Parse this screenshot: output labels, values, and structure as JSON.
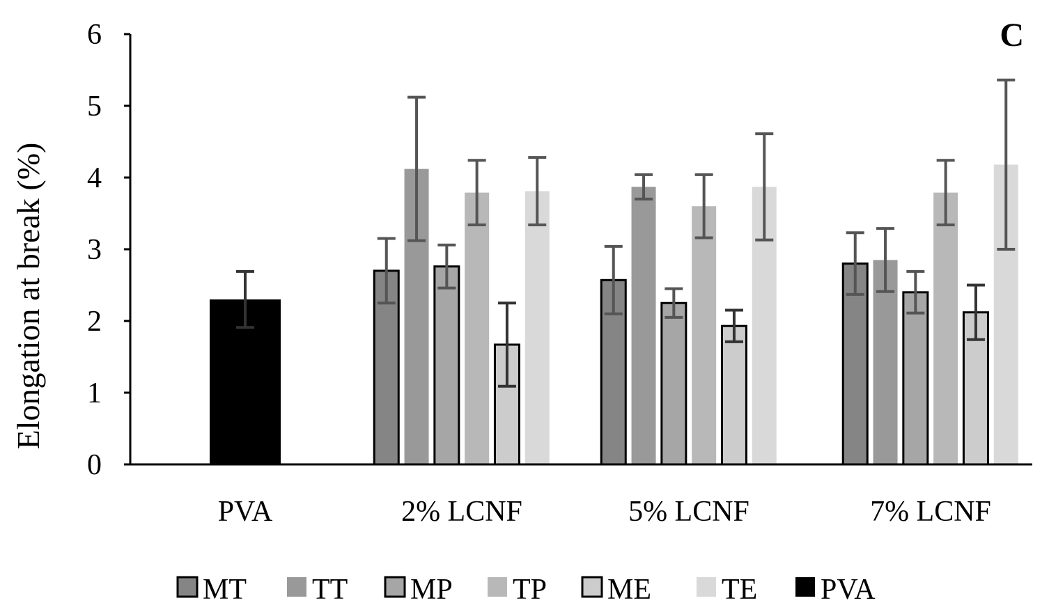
{
  "chart_data": {
    "type": "bar",
    "panel_label": "C",
    "ylabel": "Elongation at break (%)",
    "xlabel": "",
    "ylim": [
      0,
      6
    ],
    "yticks": [
      "0",
      "1",
      "2",
      "3",
      "4",
      "5",
      "6"
    ],
    "categories": [
      "PVA",
      "2% LCNF",
      "5% LCNF",
      "7% LCNF"
    ],
    "series": [
      {
        "name": "MT",
        "color": "#858585",
        "outlined": true,
        "values": [
          null,
          2.7,
          2.57,
          2.8
        ],
        "errors": [
          null,
          0.45,
          0.47,
          0.43
        ]
      },
      {
        "name": "TT",
        "color": "#999999",
        "outlined": false,
        "values": [
          null,
          4.12,
          3.87,
          2.85
        ],
        "errors": [
          null,
          1.0,
          0.17,
          0.44
        ]
      },
      {
        "name": "MP",
        "color": "#a6a6a6",
        "outlined": true,
        "values": [
          null,
          2.76,
          2.25,
          2.4
        ],
        "errors": [
          null,
          0.3,
          0.2,
          0.29
        ]
      },
      {
        "name": "TP",
        "color": "#b8b8b8",
        "outlined": false,
        "values": [
          null,
          3.79,
          3.6,
          3.79
        ],
        "errors": [
          null,
          0.45,
          0.44,
          0.45
        ]
      },
      {
        "name": "ME",
        "color": "#cccccc",
        "outlined": true,
        "values": [
          null,
          1.67,
          1.93,
          2.12
        ],
        "errors": [
          null,
          0.58,
          0.22,
          0.38
        ]
      },
      {
        "name": "TE",
        "color": "#d9d9d9",
        "outlined": false,
        "values": [
          null,
          3.81,
          3.87,
          4.18
        ],
        "errors": [
          null,
          0.47,
          0.74,
          1.18
        ]
      },
      {
        "name": "PVA",
        "color": "#000000",
        "outlined": false,
        "values": [
          2.3,
          null,
          null,
          null
        ],
        "errors": [
          0.39,
          null,
          null,
          null
        ]
      }
    ],
    "legend_position": "bottom",
    "grid": false
  }
}
